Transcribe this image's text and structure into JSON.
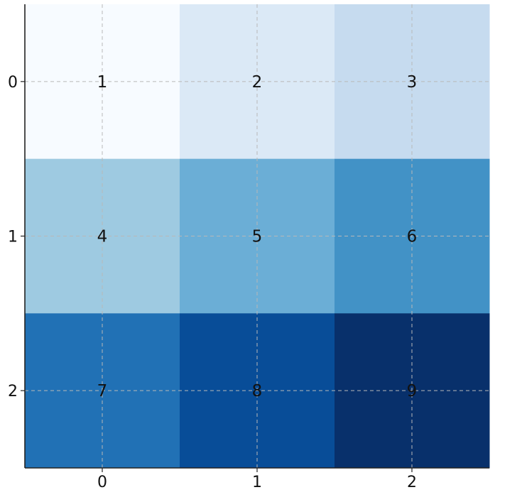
{
  "chart_data": {
    "type": "heatmap",
    "title": "",
    "xlabel": "",
    "ylabel": "",
    "x_categories": [
      "0",
      "1",
      "2"
    ],
    "y_categories": [
      "0",
      "1",
      "2"
    ],
    "values": [
      [
        1,
        2,
        3
      ],
      [
        4,
        5,
        6
      ],
      [
        7,
        8,
        9
      ]
    ],
    "colors": [
      [
        "#f7fbff",
        "#dbe9f6",
        "#c6dbef"
      ],
      [
        "#9ecae1",
        "#6baed6",
        "#4292c6"
      ],
      [
        "#2171b5",
        "#084d98",
        "#08306b"
      ]
    ],
    "grid": true,
    "grid_style": "dashed",
    "colormap": "Blues"
  }
}
